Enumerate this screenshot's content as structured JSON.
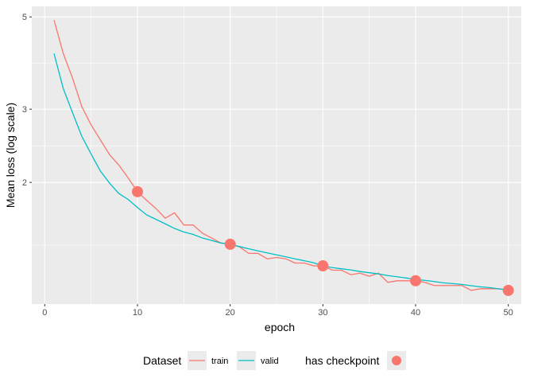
{
  "chart_data": {
    "type": "line",
    "title": "",
    "xlabel": "epoch",
    "ylabel": "Mean loss (log scale)",
    "y_scale": "log",
    "xlim": [
      -1.4,
      51.4
    ],
    "ylim": [
      1.02,
      5.3
    ],
    "x_ticks": [
      0,
      10,
      20,
      30,
      40,
      50
    ],
    "y_ticks": [
      2,
      3,
      5
    ],
    "grid": true,
    "legend_position": "bottom",
    "panel_background": "#EBEBEB",
    "x": [
      1,
      2,
      3,
      4,
      5,
      6,
      7,
      8,
      9,
      10,
      11,
      12,
      13,
      14,
      15,
      16,
      17,
      18,
      19,
      20,
      21,
      22,
      23,
      24,
      25,
      26,
      27,
      28,
      29,
      30,
      31,
      32,
      33,
      34,
      35,
      36,
      37,
      38,
      39,
      40,
      41,
      42,
      43,
      44,
      45,
      46,
      47,
      48,
      49,
      50
    ],
    "series": [
      {
        "name": "train",
        "color": "#F8766D",
        "values": [
          4.91,
          4.08,
          3.56,
          3.04,
          2.75,
          2.53,
          2.33,
          2.2,
          2.05,
          1.9,
          1.81,
          1.73,
          1.64,
          1.69,
          1.58,
          1.58,
          1.51,
          1.47,
          1.43,
          1.42,
          1.4,
          1.35,
          1.35,
          1.31,
          1.32,
          1.31,
          1.28,
          1.28,
          1.26,
          1.26,
          1.23,
          1.23,
          1.2,
          1.21,
          1.19,
          1.21,
          1.15,
          1.16,
          1.16,
          1.16,
          1.15,
          1.13,
          1.13,
          1.13,
          1.13,
          1.1,
          1.11,
          1.11,
          1.11,
          1.1
        ]
      },
      {
        "name": "valid",
        "color": "#00BFC4",
        "values": [
          4.08,
          3.36,
          2.94,
          2.58,
          2.34,
          2.13,
          1.99,
          1.88,
          1.82,
          1.74,
          1.67,
          1.63,
          1.59,
          1.55,
          1.52,
          1.5,
          1.47,
          1.45,
          1.43,
          1.42,
          1.402,
          1.385,
          1.369,
          1.354,
          1.339,
          1.325,
          1.31,
          1.296,
          1.282,
          1.259,
          1.248,
          1.24,
          1.232,
          1.221,
          1.213,
          1.205,
          1.194,
          1.186,
          1.178,
          1.168,
          1.163,
          1.155,
          1.147,
          1.142,
          1.137,
          1.129,
          1.122,
          1.117,
          1.109,
          1.102
        ]
      }
    ],
    "checkpoints": {
      "name": "has checkpoint",
      "color": "#F8766D",
      "x": [
        10,
        20,
        30,
        40,
        50
      ],
      "y": [
        1.9,
        1.42,
        1.26,
        1.16,
        1.1
      ]
    },
    "legend": {
      "dataset_title": "Dataset",
      "dataset_entries": [
        "train",
        "valid"
      ],
      "checkpoint_title": "has checkpoint"
    }
  }
}
